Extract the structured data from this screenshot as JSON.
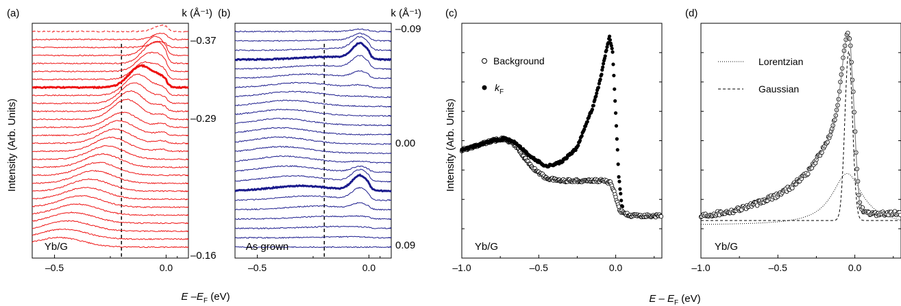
{
  "ylabel": "Intensity (Arb. Units)",
  "xlabel_ab": {
    "main": "E –E",
    "sub": "F",
    "unit": " (eV)"
  },
  "xlabel_cd": {
    "main": "E – E",
    "sub": "F",
    "unit": " (eV)"
  },
  "chart_data": [
    {
      "panel": "(a)",
      "type": "line",
      "sample_label": "Yb/G",
      "k_axis_label": "k (Å⁻¹)",
      "k_ticks": [
        "–0.37",
        "–0.29",
        "–0.16"
      ],
      "x_ticks": [
        "–0.5",
        "0.0"
      ],
      "xlim": [
        -0.6,
        0.1
      ],
      "dashed_line_x": -0.2,
      "color": "#ee1111",
      "n_curves": 28,
      "highlight_curve_index": 7,
      "first_curve_dashed": true
    },
    {
      "panel": "(b)",
      "type": "line",
      "sample_label": "As grown",
      "k_axis_label": "k (Å⁻¹)",
      "k_ticks": [
        "–0.09",
        "0.00",
        "0.09"
      ],
      "x_ticks": [
        "–0.5",
        "0.0"
      ],
      "xlim": [
        -0.6,
        0.1
      ],
      "dashed_line_x": -0.2,
      "color": "#1a1a8c",
      "n_curves": 24,
      "highlight_curve_index": [
        3,
        17
      ]
    },
    {
      "panel": "(c)",
      "type": "scatter",
      "sample_label": "Yb/G",
      "x_ticks": [
        "–1.0",
        "–0.5",
        "0.0"
      ],
      "xlim": [
        -1.0,
        0.3
      ],
      "legend": [
        {
          "name": "Background",
          "marker": "open-circle"
        },
        {
          "name": "k",
          "sub": "F",
          "marker": "filled-circle"
        }
      ],
      "series": [
        {
          "name": "Background",
          "x": [
            -1.0,
            -0.9,
            -0.8,
            -0.72,
            -0.65,
            -0.55,
            -0.45,
            -0.35,
            -0.25,
            -0.15,
            -0.08,
            -0.03,
            0.0,
            0.03,
            0.1,
            0.2,
            0.3
          ],
          "y": [
            0.46,
            0.48,
            0.5,
            0.51,
            0.48,
            0.39,
            0.34,
            0.33,
            0.33,
            0.33,
            0.33,
            0.32,
            0.26,
            0.2,
            0.18,
            0.18,
            0.18
          ]
        },
        {
          "name": "kF",
          "x": [
            -1.0,
            -0.9,
            -0.8,
            -0.72,
            -0.65,
            -0.55,
            -0.45,
            -0.35,
            -0.25,
            -0.2,
            -0.15,
            -0.1,
            -0.07,
            -0.04,
            -0.02,
            0.0,
            0.02,
            0.04
          ],
          "y": [
            0.46,
            0.48,
            0.5,
            0.51,
            0.49,
            0.43,
            0.39,
            0.41,
            0.47,
            0.56,
            0.64,
            0.76,
            0.86,
            0.94,
            0.88,
            0.62,
            0.35,
            0.22
          ]
        }
      ]
    },
    {
      "panel": "(d)",
      "type": "scatter",
      "sample_label": "Yb/G",
      "x_ticks": [
        "–1.0",
        "–0.5",
        "0.0"
      ],
      "xlim": [
        -1.0,
        0.3
      ],
      "legend": [
        {
          "name": "Lorentzian",
          "style": "dotted"
        },
        {
          "name": "Gaussian",
          "style": "dashed"
        }
      ],
      "series": [
        {
          "name": "data",
          "x": [
            -1.0,
            -0.9,
            -0.8,
            -0.7,
            -0.6,
            -0.5,
            -0.4,
            -0.3,
            -0.25,
            -0.2,
            -0.15,
            -0.12,
            -0.09,
            -0.07,
            -0.05,
            -0.03,
            -0.01,
            0.01,
            0.03,
            0.06,
            0.1,
            0.2,
            0.3
          ],
          "y": [
            0.18,
            0.19,
            0.2,
            0.22,
            0.24,
            0.27,
            0.31,
            0.37,
            0.42,
            0.47,
            0.54,
            0.62,
            0.76,
            0.88,
            0.96,
            0.92,
            0.7,
            0.42,
            0.24,
            0.19,
            0.19,
            0.19,
            0.19
          ]
        }
      ]
    }
  ]
}
